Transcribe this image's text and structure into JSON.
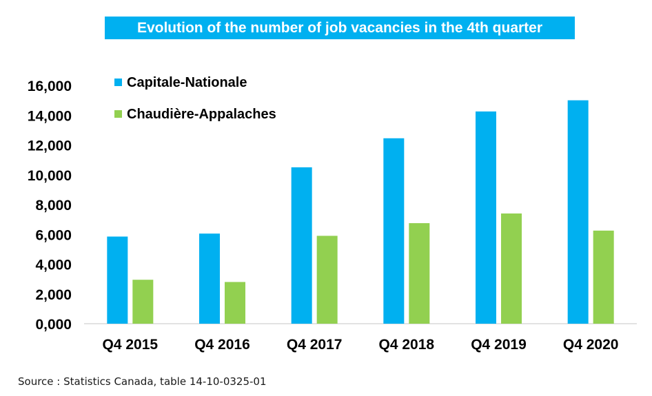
{
  "chart_data": {
    "type": "bar",
    "title": "Evolution of the number of job vacancies in the 4th quarter",
    "categories": [
      "Q4 2015",
      "Q4 2016",
      "Q4 2017",
      "Q4 2018",
      "Q4 2019",
      "Q4 2020"
    ],
    "series": [
      {
        "name": "Capitale-Nationale",
        "values": [
          5850,
          6050,
          10500,
          12450,
          14250,
          15000
        ]
      },
      {
        "name": "Chaudière-Appalaches",
        "values": [
          2950,
          2800,
          5900,
          6750,
          7400,
          6250
        ]
      }
    ],
    "yticks": [
      "0,000",
      "2,000",
      "4,000",
      "6,000",
      "8,000",
      "10,000",
      "12,000",
      "14,000",
      "16,000"
    ],
    "ylim": [
      0,
      16000
    ],
    "grid": false,
    "legend_position": "top-left",
    "colors": {
      "series": [
        "#00B0F0",
        "#92D050"
      ],
      "title_background": "#00B0F0",
      "axis": "#d9d9d9"
    }
  },
  "source_note": "Source : Statistics Canada, table 14-10-0325-01"
}
